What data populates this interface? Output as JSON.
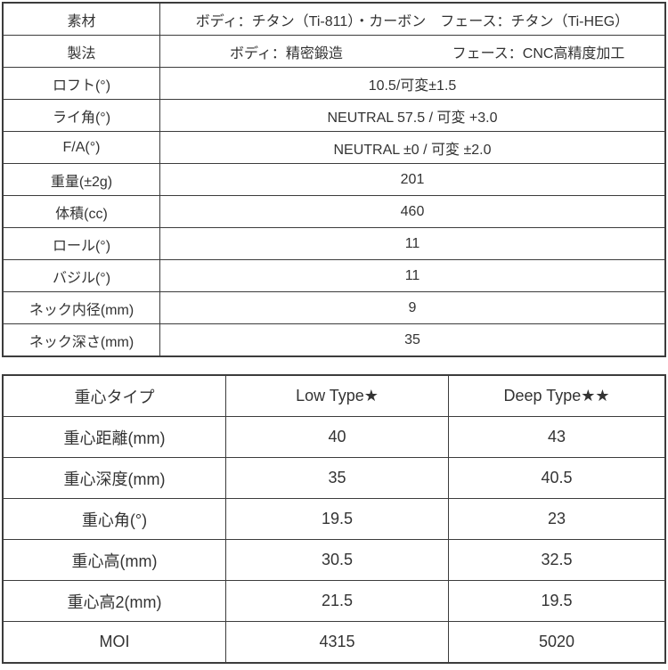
{
  "spec_table": {
    "rows": [
      {
        "label": "素材",
        "value": "ボディ：チタン（Ti-811）・カーボン　フェース：チタン（Ti-HEG）"
      },
      {
        "label": "製法",
        "value_left": "ボディ：精密鍛造",
        "value_right": "フェース：CNC高精度加工"
      },
      {
        "label": "ロフト(°)",
        "value": "10.5/可変±1.5"
      },
      {
        "label": "ライ角(°)",
        "value": "NEUTRAL 57.5 / 可変 +3.0"
      },
      {
        "label": "F/A(°)",
        "value": "NEUTRAL ±0 / 可変 ±2.0"
      },
      {
        "label": "重量(±2g)",
        "value": "201"
      },
      {
        "label": "体積(cc)",
        "value": "460"
      },
      {
        "label": "ロール(°)",
        "value": "11"
      },
      {
        "label": "バジル(°)",
        "value": "11"
      },
      {
        "label": "ネック内径(mm)",
        "value": "9"
      },
      {
        "label": "ネック深さ(mm)",
        "value": "35"
      }
    ]
  },
  "cg_table": {
    "headers": {
      "type": "重心タイプ",
      "low": "Low Type★",
      "deep": "Deep Type★★"
    },
    "rows": [
      {
        "label": "重心距離(mm)",
        "low": "40",
        "deep": "43"
      },
      {
        "label": "重心深度(mm)",
        "low": "35",
        "deep": "40.5"
      },
      {
        "label": "重心角(°)",
        "low": "19.5",
        "deep": "23"
      },
      {
        "label": "重心高(mm)",
        "low": "30.5",
        "deep": "32.5"
      },
      {
        "label": "重心高2(mm)",
        "low": "21.5",
        "deep": "19.5"
      },
      {
        "label": "MOI",
        "low": "4315",
        "deep": "5020"
      }
    ]
  }
}
